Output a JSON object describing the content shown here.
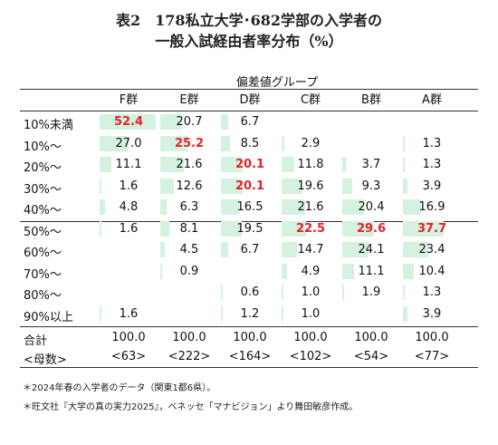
{
  "title_line1": "表2　178私立大学･682学部の入学者の",
  "title_line2": "一般入試経由者率分布（%）",
  "group_header": "偏差値グループ",
  "columns": [
    "F群",
    "E群",
    "D群",
    "C群",
    "B群",
    "A群"
  ],
  "rows": [
    {
      "label": "10%未満",
      "values": [
        "52.4",
        "20.7",
        "6.7",
        "",
        "",
        ""
      ],
      "highlight": [
        0
      ]
    },
    {
      "label": "10%～",
      "values": [
        "27.0",
        "25.2",
        "8.5",
        "2.9",
        "",
        "1.3"
      ],
      "highlight": [
        1
      ]
    },
    {
      "label": "20%～",
      "values": [
        "11.1",
        "21.6",
        "20.1",
        "11.8",
        "3.7",
        "1.3"
      ],
      "highlight": [
        2
      ]
    },
    {
      "label": "30%～",
      "values": [
        "1.6",
        "12.6",
        "20.1",
        "19.6",
        "9.3",
        "3.9"
      ],
      "highlight": [
        2
      ]
    },
    {
      "label": "40%～",
      "values": [
        "4.8",
        "6.3",
        "16.5",
        "21.6",
        "20.4",
        "16.9"
      ],
      "highlight": []
    },
    {
      "label": "50%～",
      "values": [
        "1.6",
        "8.1",
        "19.5",
        "22.5",
        "29.6",
        "37.7"
      ],
      "highlight": [
        3,
        4,
        5
      ]
    },
    {
      "label": "60%～",
      "values": [
        "",
        "4.5",
        "6.7",
        "14.7",
        "24.1",
        "23.4"
      ],
      "highlight": []
    },
    {
      "label": "70%～",
      "values": [
        "",
        "0.9",
        "",
        "4.9",
        "11.1",
        "10.4"
      ],
      "highlight": []
    },
    {
      "label": "80%～",
      "values": [
        "",
        "",
        "0.6",
        "1.0",
        "1.9",
        "1.3"
      ],
      "highlight": []
    },
    {
      "label": "90%以上",
      "values": [
        "1.6",
        "",
        "1.2",
        "1.0",
        "",
        "3.9"
      ],
      "highlight": []
    }
  ],
  "total_row": {
    "label": "合計",
    "values": [
      "100.0",
      "100.0",
      "100.0",
      "100.0",
      "100.0",
      "100.0"
    ]
  },
  "count_row": {
    "label": "<母数>",
    "values": [
      "<63>",
      "<222>",
      "<164>",
      "<102>",
      "<54>",
      "<77>"
    ]
  },
  "note1": "＊2024年春の入学者のデータ（関東1都6県）。",
  "note2": "＊旺文社『大学の真の実力2025』，ベネッセ「マナビジョン」より舞田敏彦作成。",
  "colors": {
    "bar": "#d4f2dd",
    "highlight": "#e8202a"
  }
}
